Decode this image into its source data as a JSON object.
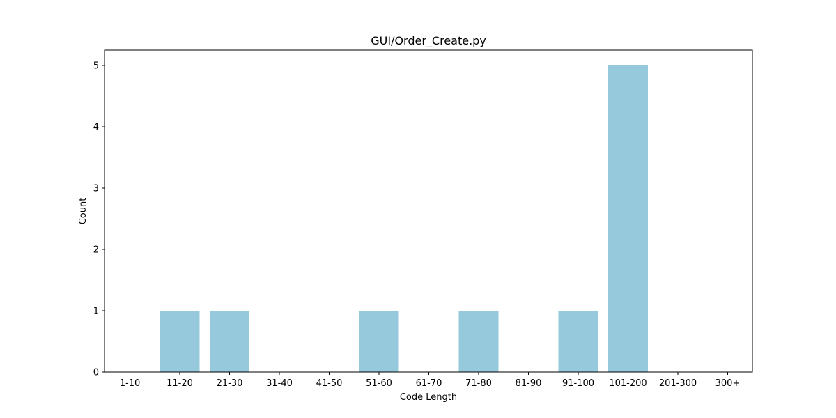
{
  "chart_data": {
    "type": "bar",
    "title": "GUI/Order_Create.py",
    "xlabel": "Code Length",
    "ylabel": "Count",
    "categories": [
      "1-10",
      "11-20",
      "21-30",
      "31-40",
      "41-50",
      "51-60",
      "61-70",
      "71-80",
      "81-90",
      "91-100",
      "101-200",
      "201-300",
      "300+"
    ],
    "values": [
      0,
      1,
      1,
      0,
      0,
      1,
      0,
      1,
      0,
      1,
      5,
      0,
      0
    ],
    "ylim": [
      0,
      5.25
    ],
    "yticks": [
      "0",
      "1",
      "2",
      "3",
      "4",
      "5"
    ],
    "bar_color": "#96c9dc",
    "grid": false,
    "legend": "none"
  }
}
